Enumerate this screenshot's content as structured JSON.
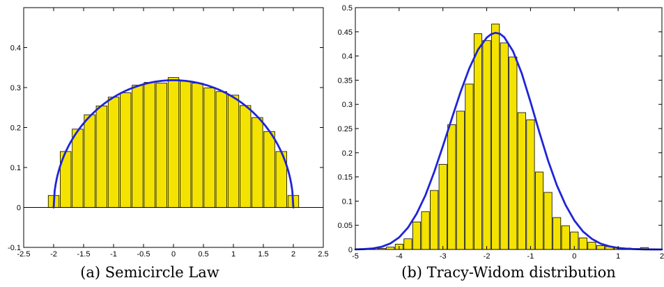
{
  "chart_data": [
    {
      "type": "bar",
      "caption": "(a) Semicircle Law",
      "xlim": [
        -2.5,
        2.5
      ],
      "ylim": [
        -0.1,
        0.5
      ],
      "xticks": [
        "-2.5",
        "-2",
        "-1.5",
        "-1",
        "-0.5",
        "0",
        "0.5",
        "1",
        "1.5",
        "2",
        "2.5"
      ],
      "yticks": [
        "-0.1",
        "0",
        "0.1",
        "0.2",
        "0.3",
        "0.4"
      ],
      "bars": {
        "x": [
          -2.0,
          -1.8,
          -1.6,
          -1.4,
          -1.2,
          -1.0,
          -0.8,
          -0.6,
          -0.4,
          -0.2,
          0.0,
          0.2,
          0.4,
          0.6,
          0.8,
          1.0,
          1.2,
          1.4,
          1.6,
          1.8,
          2.0
        ],
        "values": [
          0.03,
          0.14,
          0.196,
          0.232,
          0.254,
          0.276,
          0.287,
          0.306,
          0.313,
          0.311,
          0.325,
          0.316,
          0.311,
          0.299,
          0.29,
          0.281,
          0.255,
          0.225,
          0.19,
          0.14,
          0.03
        ],
        "width": 0.18,
        "color": "#f4e300"
      },
      "curve": {
        "label_free": true,
        "formula": "sqrt(4 - x^2) / (2*pi)",
        "x_range": [
          -2,
          2
        ],
        "color": "#1f24d8"
      },
      "baseline": 0,
      "grid": false
    },
    {
      "type": "bar",
      "caption": "(b) Tracy-Widom distribution",
      "xlim": [
        -5,
        2
      ],
      "ylim": [
        0,
        0.5
      ],
      "xticks": [
        "-5",
        "-4",
        "-3",
        "-2",
        "-1",
        "0",
        "1",
        "2"
      ],
      "yticks": [
        "0",
        "0.05",
        "0.1",
        "0.15",
        "0.2",
        "0.25",
        "0.3",
        "0.35",
        "0.4",
        "0.45",
        "0.5"
      ],
      "bars": {
        "x": [
          -4.4,
          -4.2,
          -4.0,
          -3.8,
          -3.6,
          -3.4,
          -3.2,
          -3.0,
          -2.8,
          -2.6,
          -2.4,
          -2.2,
          -2.0,
          -1.8,
          -1.6,
          -1.4,
          -1.2,
          -1.0,
          -0.8,
          -0.6,
          -0.4,
          -0.2,
          0.0,
          0.2,
          0.4,
          0.6,
          0.8,
          1.0,
          1.2,
          1.4,
          1.6
        ],
        "values": [
          0.002,
          0.005,
          0.011,
          0.022,
          0.057,
          0.078,
          0.122,
          0.176,
          0.258,
          0.286,
          0.342,
          0.446,
          0.432,
          0.466,
          0.427,
          0.398,
          0.283,
          0.268,
          0.16,
          0.118,
          0.066,
          0.049,
          0.036,
          0.024,
          0.015,
          0.008,
          0.006,
          0.003,
          0.003,
          0.002,
          0.004
        ],
        "width": 0.18,
        "color": "#f4e300"
      },
      "curve": {
        "x": [
          -5.0,
          -4.8,
          -4.6,
          -4.4,
          -4.2,
          -4.0,
          -3.8,
          -3.6,
          -3.4,
          -3.2,
          -3.0,
          -2.8,
          -2.6,
          -2.4,
          -2.2,
          -2.0,
          -1.9,
          -1.8,
          -1.7,
          -1.6,
          -1.4,
          -1.2,
          -1.0,
          -0.8,
          -0.6,
          -0.4,
          -0.2,
          0.0,
          0.2,
          0.4,
          0.6,
          0.8,
          1.0,
          1.2,
          1.4,
          1.6,
          1.8,
          2.0
        ],
        "y": [
          0.0002,
          0.0008,
          0.0022,
          0.0055,
          0.0125,
          0.025,
          0.045,
          0.074,
          0.112,
          0.16,
          0.214,
          0.27,
          0.325,
          0.374,
          0.413,
          0.438,
          0.445,
          0.448,
          0.446,
          0.439,
          0.41,
          0.364,
          0.305,
          0.243,
          0.184,
          0.133,
          0.092,
          0.06,
          0.037,
          0.022,
          0.012,
          0.0065,
          0.0033,
          0.0016,
          0.0007,
          0.0003,
          0.0001,
          0.0
        ],
        "color": "#1f24d8"
      },
      "grid": false
    }
  ]
}
